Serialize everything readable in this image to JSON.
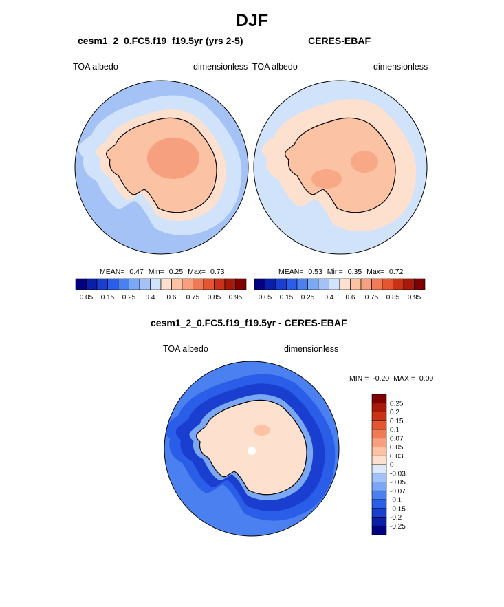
{
  "title": "DJF",
  "panels": [
    {
      "id": "model",
      "title": "cesm1_2_0.FC5.f19_f19.5yr (yrs 2-5)",
      "left_label": "TOA albedo",
      "right_label": "dimensionless",
      "stats": {
        "mean_label": "MEAN=",
        "mean": "0.47",
        "min_label": "Min=",
        "min": "0.25",
        "max_label": "Max=",
        "max": "0.73"
      },
      "colorbar": {
        "colors": [
          "#02007f",
          "#0a1fa8",
          "#1a3ed0",
          "#2b5ee8",
          "#4a80f0",
          "#7aa8f4",
          "#a4c2f5",
          "#d0e3fb",
          "#fde0cd",
          "#fbc2a4",
          "#f7a07f",
          "#ef7a55",
          "#e45531",
          "#c93217",
          "#a51a0b",
          "#7f0000"
        ],
        "ticks": [
          "0.05",
          "0.15",
          "0.25",
          "0.4",
          "0.6",
          "0.75",
          "0.85",
          "0.95"
        ]
      }
    },
    {
      "id": "obs",
      "title": "CERES-EBAF",
      "left_label": "TOA albedo",
      "right_label": "dimensionless",
      "stats": {
        "mean_label": "MEAN=",
        "mean": "0.53",
        "min_label": "Min=",
        "min": "0.35",
        "max_label": "Max=",
        "max": "0.72"
      },
      "colorbar": {
        "colors": [
          "#02007f",
          "#0a1fa8",
          "#1a3ed0",
          "#2b5ee8",
          "#4a80f0",
          "#7aa8f4",
          "#a4c2f5",
          "#d0e3fb",
          "#fde0cd",
          "#fbc2a4",
          "#f7a07f",
          "#ef7a55",
          "#e45531",
          "#c93217",
          "#a51a0b",
          "#7f0000"
        ],
        "ticks": [
          "0.05",
          "0.15",
          "0.25",
          "0.4",
          "0.6",
          "0.75",
          "0.85",
          "0.95"
        ]
      }
    },
    {
      "id": "diff",
      "title": "cesm1_2_0.FC5.f19_f19.5yr - CERES-EBAF",
      "left_label": "TOA albedo",
      "right_label": "dimensionless",
      "stats": {
        "min_label": "MIN =",
        "min": "-0.20",
        "max_label": "MAX =",
        "max": "0.09"
      },
      "colorbar": {
        "colors": [
          "#7f0000",
          "#a51a0b",
          "#c93217",
          "#e45531",
          "#ef7a55",
          "#f7a07f",
          "#fbc2a4",
          "#fde0cd",
          "#dce9fa",
          "#a4c2f5",
          "#7aa8f4",
          "#4a80f0",
          "#2b5ee8",
          "#1a3ed0",
          "#0a1fa8",
          "#02007f"
        ],
        "ticks": [
          "0.25",
          "0.2",
          "0.15",
          "0.1",
          "0.07",
          "0.05",
          "0.03",
          "0",
          "-0.03",
          "-0.05",
          "-0.07",
          "-0.1",
          "-0.15",
          "-0.2",
          "-0.25"
        ]
      }
    }
  ],
  "chart_data": [
    {
      "type": "heatmap",
      "projection": "south polar stereographic",
      "title": "cesm1_2_0.FC5.f19_f19.5yr (yrs 2-5)",
      "variable": "TOA albedo",
      "units": "dimensionless",
      "season": "DJF",
      "mean": 0.47,
      "min": 0.25,
      "max": 0.73,
      "colorbar_levels": [
        0.05,
        0.1,
        0.15,
        0.2,
        0.25,
        0.3,
        0.4,
        0.5,
        0.6,
        0.7,
        0.75,
        0.8,
        0.85,
        0.9,
        0.95
      ],
      "colorbar_tick_labels": [
        "0.05",
        "0.15",
        "0.25",
        "0.4",
        "0.6",
        "0.75",
        "0.85",
        "0.95"
      ],
      "colors": {
        "ocean": "#a4c2f5",
        "sea_ice_edge": "#fde0cd",
        "continent": "#fbc2a4",
        "interior": "#f7a07f"
      }
    },
    {
      "type": "heatmap",
      "projection": "south polar stereographic",
      "title": "CERES-EBAF",
      "variable": "TOA albedo",
      "units": "dimensionless",
      "season": "DJF",
      "mean": 0.53,
      "min": 0.35,
      "max": 0.72,
      "colorbar_levels": [
        0.05,
        0.1,
        0.15,
        0.2,
        0.25,
        0.3,
        0.4,
        0.5,
        0.6,
        0.7,
        0.75,
        0.8,
        0.85,
        0.9,
        0.95
      ],
      "colorbar_tick_labels": [
        "0.05",
        "0.15",
        "0.25",
        "0.4",
        "0.6",
        "0.75",
        "0.85",
        "0.95"
      ],
      "colors": {
        "ocean": "#d0e3fb",
        "sea_ice_edge": "#fde0cd",
        "continent": "#fbc2a4",
        "interior": "#f7a07f"
      }
    },
    {
      "type": "heatmap",
      "projection": "south polar stereographic",
      "title": "cesm1_2_0.FC5.f19_f19.5yr - CERES-EBAF",
      "variable": "TOA albedo",
      "units": "dimensionless",
      "season": "DJF",
      "min": -0.2,
      "max": 0.09,
      "colorbar_levels": [
        0.25,
        0.2,
        0.15,
        0.1,
        0.07,
        0.05,
        0.03,
        0,
        -0.03,
        -0.05,
        -0.07,
        -0.1,
        -0.15,
        -0.2,
        -0.25
      ],
      "colorbar_tick_labels": [
        "0.25",
        "0.2",
        "0.15",
        "0.1",
        "0.07",
        "0.05",
        "0.03",
        "0",
        "-0.03",
        "-0.05",
        "-0.07",
        "-0.1",
        "-0.15",
        "-0.2",
        "-0.25"
      ],
      "colors": {
        "outer_ocean": "#4a80f0",
        "southern_ocean": "#1a3ed0",
        "coastal": "#a4c2f5",
        "continent": "#fde0cd",
        "hotspot": "#fbc2a4"
      }
    }
  ]
}
